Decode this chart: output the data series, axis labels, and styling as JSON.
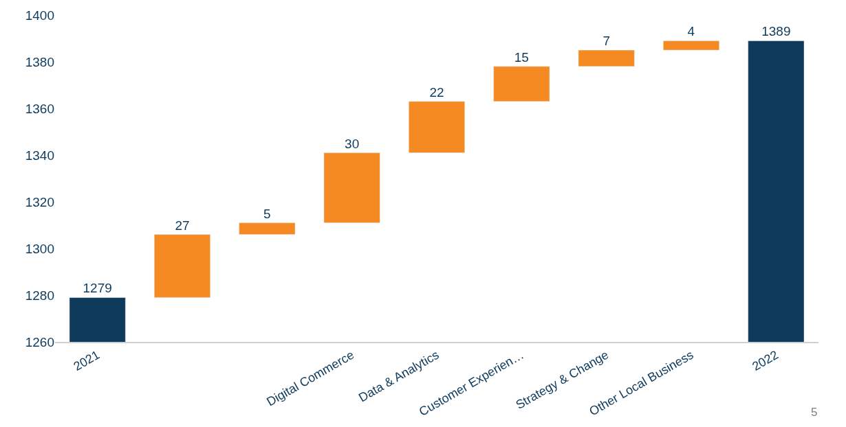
{
  "chart_data": {
    "type": "bar",
    "categories": [
      "2021",
      null,
      null,
      "Digital Commerce",
      "Data & Analytics",
      "Customer Experien…",
      "Strategy & Change",
      "Other Local Business",
      "2022"
    ],
    "values": [
      1279,
      27,
      5,
      30,
      22,
      15,
      7,
      4,
      1389
    ],
    "base": [
      null,
      1279,
      1306,
      1311,
      1341,
      1363,
      1378,
      1385,
      null
    ],
    "colors": [
      "#0e3a5c",
      "#f58a23",
      "#f58a23",
      "#f58a23",
      "#f58a23",
      "#f58a23",
      "#f58a23",
      "#f58a23",
      "#0e3a5c"
    ],
    "ylim": [
      1260,
      1400
    ],
    "yticks": [
      1260,
      1280,
      1300,
      1320,
      1340,
      1360,
      1380,
      1400
    ],
    "data_labels": true,
    "annotations": [
      "5"
    ]
  }
}
